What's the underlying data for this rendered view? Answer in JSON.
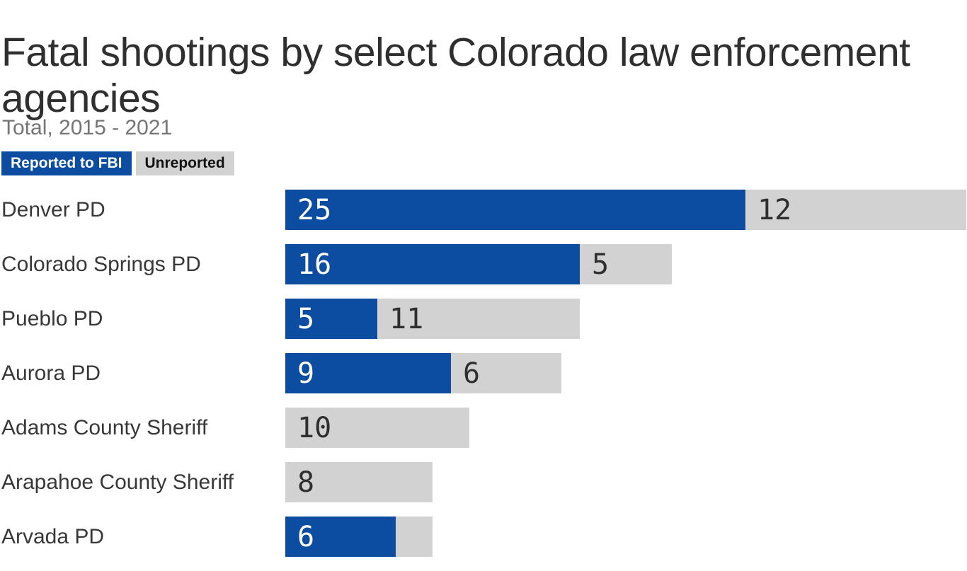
{
  "header": {
    "title": "Fatal shootings by select Colorado law enforcement agencies",
    "subtitle": "Total, 2015 - 2021"
  },
  "legend": {
    "items": [
      {
        "label": "Reported to FBI",
        "color": "#0c4da2",
        "text_color": "#ffffff"
      },
      {
        "label": "Unreported",
        "color": "#d2d2d2",
        "text_color": "#111111"
      }
    ]
  },
  "chart_data": {
    "type": "bar",
    "orientation": "horizontal",
    "stacked": true,
    "title": "Fatal shootings by select Colorado law enforcement agencies",
    "subtitle": "Total, 2015 - 2021",
    "categories": [
      "Denver PD",
      "Colorado Springs PD",
      "Pueblo PD",
      "Aurora PD",
      "Adams County Sheriff",
      "Arapahoe County Sheriff",
      "Arvada PD"
    ],
    "series": [
      {
        "name": "Reported to FBI",
        "color": "#0c4da2",
        "values": [
          25,
          16,
          5,
          9,
          0,
          0,
          6
        ]
      },
      {
        "name": "Unreported",
        "color": "#d2d2d2",
        "values": [
          12,
          5,
          11,
          6,
          10,
          8,
          2
        ]
      }
    ],
    "value_label_visible": {
      "reported": [
        true,
        true,
        true,
        true,
        false,
        false,
        true
      ],
      "unreported": [
        true,
        true,
        true,
        true,
        true,
        true,
        false
      ]
    },
    "legend_position": "top-left",
    "grid": false,
    "axis_labels_shown": false,
    "notes": "Chart is cropped at the bottom edge: the Arvada PD bar is only partially visible and the value label of its unreported segment is not shown (segment width implies about 2)."
  },
  "colors": {
    "reported_blue": "#0c4da2",
    "unreported_gray": "#d2d2d2",
    "title_text": "#2f2f2f",
    "subtitle_text": "#757575",
    "category_label_text": "#383838",
    "value_on_gray": "#2f2f2f",
    "value_on_blue": "#ffffff",
    "background": "#ffffff"
  }
}
